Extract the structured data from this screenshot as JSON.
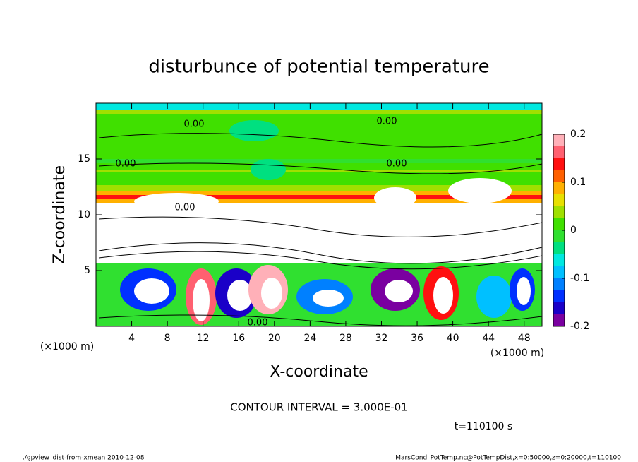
{
  "chart_data": {
    "type": "contour",
    "title": "disturbunce of potential temperature",
    "x_label": "X-coordinate",
    "y_label": "Z-coordinate",
    "x_unit": "(×1000 m)",
    "y_unit": "(×1000 m)",
    "xlim": [
      0,
      50
    ],
    "ylim": [
      0,
      20
    ],
    "xticks": [
      4,
      8,
      12,
      16,
      20,
      24,
      28,
      32,
      36,
      40,
      44,
      48
    ],
    "yticks": [
      5,
      10,
      15
    ],
    "colorbar": {
      "lim": [
        -0.2,
        0.2
      ],
      "ticks": [
        0.2,
        0.1,
        0,
        -0.1,
        -0.2
      ],
      "colors": [
        "#7a00a0",
        "#1a00c8",
        "#0030ff",
        "#0080ff",
        "#00c0ff",
        "#00e8e0",
        "#00e080",
        "#30e030",
        "#40e000",
        "#a0e000",
        "#e8e000",
        "#ffb000",
        "#ff6000",
        "#ff1010",
        "#ff6070",
        "#ffb0b8"
      ]
    },
    "annotations": [
      "0.00",
      "0.00",
      "0.00",
      "0.00",
      "0.00",
      "0.00"
    ],
    "contour_interval": "CONTOUR INTERVAL = 3.000E-01",
    "time_label": "t=110100 s",
    "footer_left": "./gpview_dist-from-xmean  2010-12-08",
    "footer_right": "MarsCond_PotTemp.nc@PotTempDist,x=0:50000,z=0:20000,t=110100"
  }
}
